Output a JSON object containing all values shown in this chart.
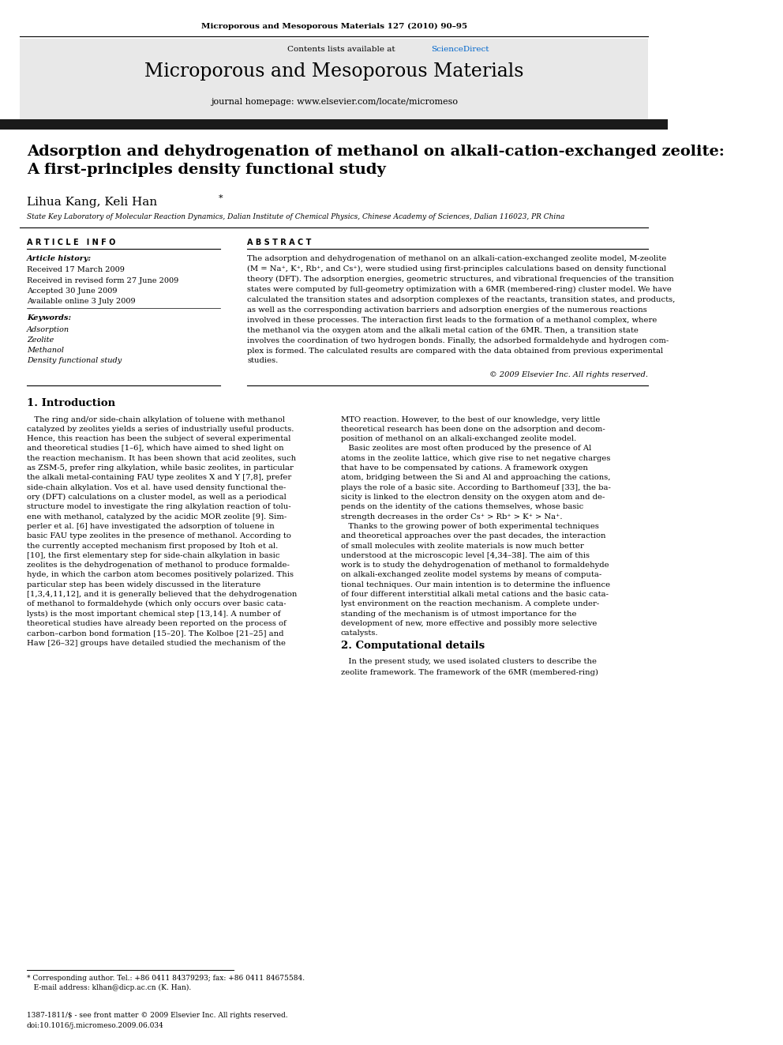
{
  "page_width": 9.92,
  "page_height": 13.23,
  "bg_color": "#ffffff",
  "journal_header_text": "Microporous and Mesoporous Materials 127 (2010) 90–95",
  "header_bg_color": "#e8e8e8",
  "header_title": "Microporous and Mesoporous Materials",
  "header_subtitle": "journal homepage: www.elsevier.com/locate/micromeso",
  "sciencedirect_color": "#0066cc",
  "black_bar_color": "#1a1a1a",
  "article_title": "Adsorption and dehydrogenation of methanol on alkali-cation-exchanged zeolite:\nA first-principles density functional study",
  "affiliation": "State Key Laboratory of Molecular Reaction Dynamics, Dalian Institute of Chemical Physics, Chinese Academy of Sciences, Dalian 116023, PR China",
  "article_info_label": "A R T I C L E   I N F O",
  "abstract_label": "A B S T R A C T",
  "article_history_label": "Article history:",
  "received": "Received 17 March 2009",
  "received_revised": "Received in revised form 27 June 2009",
  "accepted": "Accepted 30 June 2009",
  "available": "Available online 3 July 2009",
  "keywords_label": "Keywords:",
  "keyword1": "Adsorption",
  "keyword2": "Zeolite",
  "keyword3": "Methanol",
  "keyword4": "Density functional study",
  "copyright": "© 2009 Elsevier Inc. All rights reserved.",
  "intro_title": "1. Introduction",
  "comp_details_title": "2. Computational details",
  "footnote_line1": "* Corresponding author. Tel.: +86 0411 84379293; fax: +86 0411 84675584.",
  "footnote_line2": "   E-mail address: klhan@dicp.ac.cn (K. Han).",
  "bottom_line1": "1387-1811/$ - see front matter © 2009 Elsevier Inc. All rights reserved.",
  "bottom_line2": "doi:10.1016/j.micromeso.2009.06.034"
}
